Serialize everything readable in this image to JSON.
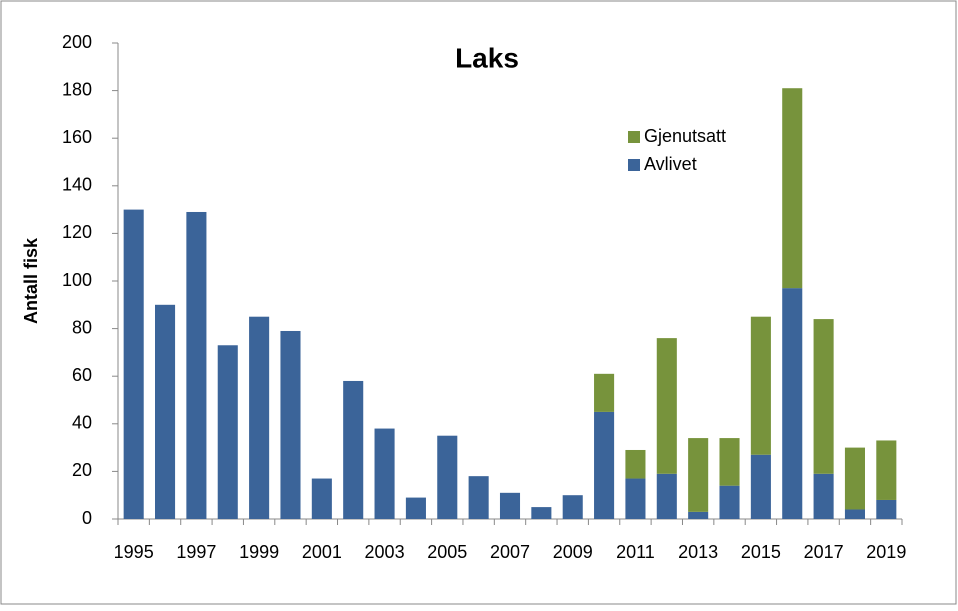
{
  "chart_data": {
    "type": "bar",
    "stacked": true,
    "title": "Laks",
    "y_label": "Antall fisk",
    "categories": [
      "1995",
      null,
      "1997",
      null,
      "1999",
      null,
      "2001",
      null,
      "2003",
      null,
      "2005",
      null,
      "2007",
      null,
      "2009",
      null,
      "2011",
      null,
      "2013",
      null,
      "2015",
      null,
      "2017",
      null,
      "2019"
    ],
    "series": [
      {
        "name": "Avlivet",
        "color": "#3b6499",
        "values": [
          130,
          90,
          129,
          73,
          85,
          79,
          17,
          58,
          38,
          9,
          35,
          18,
          11,
          5,
          10,
          45,
          17,
          19,
          3,
          14,
          27,
          97,
          19,
          4,
          8
        ]
      },
      {
        "name": "Gjenutsatt",
        "color": "#77933c",
        "values": [
          0,
          0,
          0,
          0,
          0,
          0,
          0,
          0,
          0,
          0,
          0,
          0,
          0,
          0,
          0,
          16,
          12,
          57,
          31,
          20,
          58,
          84,
          65,
          26,
          25
        ]
      }
    ],
    "ylim": [
      0,
      200
    ],
    "yticks": [
      0,
      20,
      40,
      60,
      80,
      100,
      120,
      140,
      160,
      180,
      200
    ],
    "grid": false
  }
}
